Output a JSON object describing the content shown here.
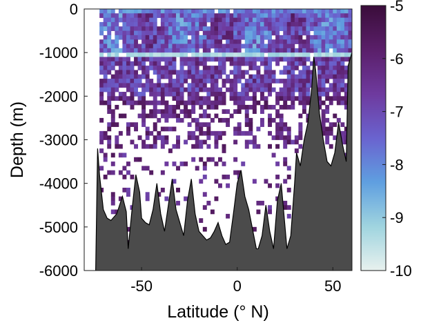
{
  "chart_data": {
    "type": "heatmap",
    "title": "",
    "xlabel": "Latitude (° N)",
    "ylabel": "Depth (m)",
    "xlim": [
      -80,
      60
    ],
    "ylim": [
      -6000,
      0
    ],
    "x_ticks": [
      -50,
      0,
      50
    ],
    "x_tick_labels": [
      "-50",
      "0",
      "50"
    ],
    "y_ticks": [
      0,
      -1000,
      -2000,
      -3000,
      -4000,
      -5000,
      -6000
    ],
    "y_tick_labels": [
      "0",
      "-1000",
      "-2000",
      "-3000",
      "-4000",
      "-5000",
      "-6000"
    ],
    "colorbar": {
      "range": [
        -10,
        -5
      ],
      "ticks": [
        -5,
        -6,
        -7,
        -8,
        -9,
        -10
      ],
      "tick_labels": [
        "-5",
        "-6",
        "-7",
        "-8",
        "-9",
        "-10"
      ],
      "colormap": [
        "#e8f1ee",
        "#9fd4df",
        "#5f9fe0",
        "#6a63cf",
        "#6e3a9e",
        "#5a1f6a",
        "#3a0d3a"
      ]
    },
    "seafloor_color": "#4b4b4b",
    "no_data_color": "#ffffff",
    "bathymetry": {
      "lat": [
        -80,
        -74,
        -73,
        -72,
        -71,
        -70,
        -68,
        -66,
        -63,
        -60,
        -58,
        -57,
        -55,
        -53,
        -51,
        -50,
        -48,
        -46,
        -44,
        -42,
        -40,
        -38,
        -36,
        -34,
        -32,
        -30,
        -28,
        -26,
        -24,
        -22,
        -20,
        -18,
        -16,
        -14,
        -12,
        -10,
        -8,
        -6,
        -4,
        -2,
        0,
        2,
        4,
        6,
        8,
        10,
        11,
        13,
        15,
        17,
        19,
        21,
        23,
        25,
        26,
        28,
        30,
        31,
        33,
        35,
        37,
        39,
        40,
        41,
        43,
        45,
        47,
        49,
        51,
        53,
        55,
        57,
        58,
        60
      ],
      "depth": [
        -6000,
        -6000,
        -3200,
        -3800,
        -4200,
        -4600,
        -4800,
        -4850,
        -4700,
        -4300,
        -4650,
        -5500,
        -4600,
        -3800,
        -4200,
        -4800,
        -4900,
        -4950,
        -4600,
        -4000,
        -4700,
        -5100,
        -4500,
        -3900,
        -4600,
        -4900,
        -5200,
        -4400,
        -3900,
        -4700,
        -5100,
        -5200,
        -5300,
        -5250,
        -5100,
        -4900,
        -5200,
        -5400,
        -5350,
        -4700,
        -4000,
        -3700,
        -4300,
        -4600,
        -5050,
        -5500,
        -5500,
        -5200,
        -4500,
        -5100,
        -5500,
        -4400,
        -4000,
        -5000,
        -5500,
        -5200,
        -4000,
        -3300,
        -3600,
        -3000,
        -2600,
        -1800,
        -1100,
        -1400,
        -2400,
        -3000,
        -3500,
        -3600,
        -3300,
        -2600,
        -3100,
        -3500,
        -1300,
        -1000
      ]
    }
  }
}
